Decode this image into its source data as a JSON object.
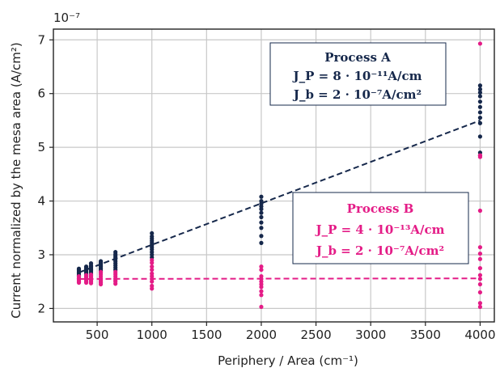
{
  "chart_data": {
    "type": "scatter",
    "xlabel": "Periphery / Area (cm⁻¹)",
    "ylabel": "Current normalized by the mesa area (A/cm²)",
    "y_offset_label": "10⁻⁷",
    "y_scale_factor": 1e-07,
    "xlim": [
      100,
      4130
    ],
    "ylim": [
      1.75,
      7.2
    ],
    "xticks": [
      500,
      1000,
      1500,
      2000,
      2500,
      3000,
      3500,
      4000
    ],
    "yticks": [
      2,
      3,
      4,
      5,
      6,
      7
    ],
    "grid": true,
    "series": [
      {
        "name": "Process A",
        "color": "#16284b",
        "fit_label": "Process A",
        "fit_lines": [
          "J_P = 8 · 10⁻¹¹A/cm",
          "J_b = 2 · 10⁻⁷A/cm²"
        ],
        "fit": {
          "x": [
            333,
            4000
          ],
          "y": [
            2.67,
            5.5
          ]
        },
        "points": [
          {
            "x": 333,
            "y": [
              2.56,
              2.6,
              2.62,
              2.64,
              2.66,
              2.68,
              2.7,
              2.72,
              2.74
            ]
          },
          {
            "x": 400,
            "y": [
              2.6,
              2.63,
              2.66,
              2.68,
              2.7,
              2.72,
              2.74,
              2.76,
              2.78
            ]
          },
          {
            "x": 444,
            "y": [
              2.62,
              2.65,
              2.68,
              2.7,
              2.72,
              2.74,
              2.76,
              2.78,
              2.8,
              2.84
            ]
          },
          {
            "x": 533,
            "y": [
              2.68,
              2.71,
              2.73,
              2.75,
              2.78,
              2.8,
              2.82,
              2.84,
              2.86,
              2.88
            ]
          },
          {
            "x": 667,
            "y": [
              2.72,
              2.76,
              2.8,
              2.84,
              2.88,
              2.92,
              2.95,
              2.98,
              3.01,
              3.05
            ]
          },
          {
            "x": 1000,
            "y": [
              2.95,
              3.0,
              3.05,
              3.1,
              3.14,
              3.18,
              3.22,
              3.26,
              3.3,
              3.34,
              3.4
            ]
          },
          {
            "x": 2000,
            "y": [
              3.22,
              3.35,
              3.5,
              3.6,
              3.7,
              3.78,
              3.85,
              3.9,
              3.95,
              4.0,
              4.08
            ]
          },
          {
            "x": 4000,
            "y": [
              4.85,
              4.9,
              5.2,
              5.45,
              5.55,
              5.65,
              5.75,
              5.85,
              5.95,
              6.02,
              6.08,
              6.15
            ]
          }
        ]
      },
      {
        "name": "Process B",
        "color": "#e41c87",
        "fit_label": "Process B",
        "fit_lines": [
          "J_P = 4 · 10⁻¹³A/cm",
          "J_b = 2 · 10⁻⁷A/cm²"
        ],
        "fit": {
          "x": [
            333,
            4000
          ],
          "y": [
            2.55,
            2.56
          ]
        },
        "points": [
          {
            "x": 333,
            "y": [
              2.48,
              2.5,
              2.52,
              2.54,
              2.56,
              2.58,
              2.6
            ]
          },
          {
            "x": 400,
            "y": [
              2.48,
              2.5,
              2.53,
              2.55,
              2.58,
              2.6,
              2.62
            ]
          },
          {
            "x": 444,
            "y": [
              2.47,
              2.5,
              2.52,
              2.55,
              2.58,
              2.6,
              2.63
            ]
          },
          {
            "x": 533,
            "y": [
              2.45,
              2.48,
              2.5,
              2.53,
              2.56,
              2.6,
              2.64,
              2.68
            ]
          },
          {
            "x": 667,
            "y": [
              2.46,
              2.5,
              2.53,
              2.56,
              2.6,
              2.64,
              2.68
            ]
          },
          {
            "x": 1000,
            "y": [
              2.37,
              2.42,
              2.5,
              2.55,
              2.6,
              2.65,
              2.72,
              2.78,
              2.85,
              2.9
            ]
          },
          {
            "x": 2000,
            "y": [
              2.03,
              2.25,
              2.32,
              2.4,
              2.45,
              2.5,
              2.55,
              2.6,
              2.72,
              2.78
            ]
          },
          {
            "x": 4000,
            "y": [
              2.03,
              2.1,
              2.3,
              2.45,
              2.55,
              2.62,
              2.75,
              2.92,
              3.02,
              3.14,
              3.82,
              4.82,
              4.85,
              6.93
            ]
          }
        ]
      }
    ]
  }
}
